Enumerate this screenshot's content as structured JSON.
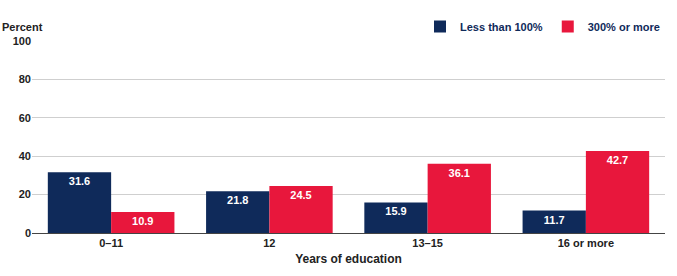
{
  "chart_data": {
    "type": "bar",
    "x_label": "Years of education",
    "y_label": "Percent",
    "categories": [
      "0–11",
      "12",
      "13–15",
      "16 or more"
    ],
    "series": [
      {
        "name": "Less than 100%",
        "color": "#0f2a5a",
        "values": [
          31.6,
          21.8,
          15.9,
          11.7
        ]
      },
      {
        "name": "300% or more",
        "color": "#e8173c",
        "values": [
          10.9,
          24.5,
          36.1,
          42.7
        ]
      }
    ],
    "ylim": [
      0,
      100
    ],
    "yticks": [
      0,
      20,
      40,
      60,
      80,
      100
    ],
    "grid": true,
    "legend": "top right",
    "data_labels": true
  }
}
